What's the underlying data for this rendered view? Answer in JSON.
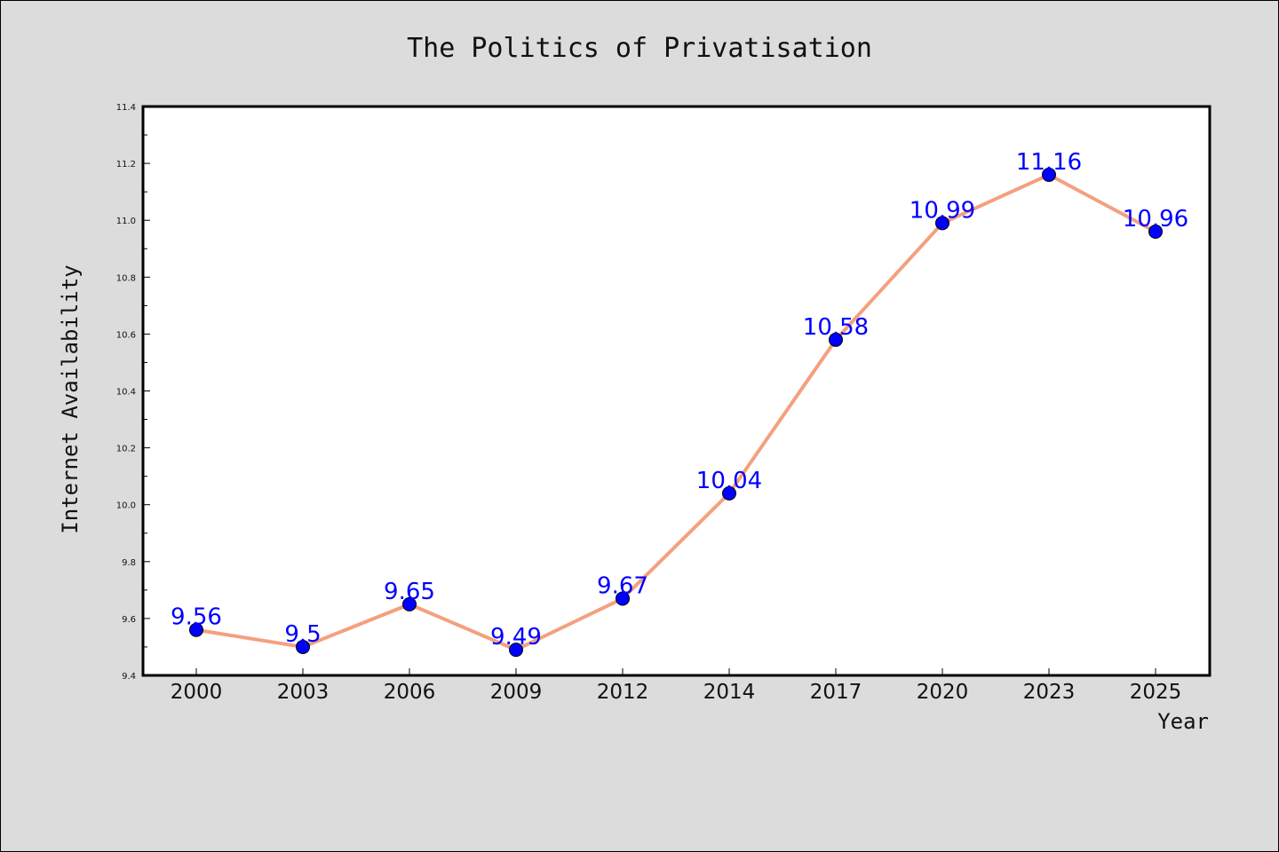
{
  "chart_data": {
    "type": "line",
    "title": "The Politics of Privatisation",
    "xlabel": "Year",
    "ylabel": "Internet Availability",
    "categories": [
      "2000",
      "2003",
      "2006",
      "2009",
      "2012",
      "2014",
      "2017",
      "2020",
      "2023",
      "2025"
    ],
    "series": [
      {
        "values": [
          9.56,
          9.5,
          9.65,
          9.49,
          9.67,
          10.04,
          10.58,
          10.99,
          11.16,
          10.96
        ],
        "labels": [
          "9.56",
          "9.5",
          "9.65",
          "9.49",
          "9.67",
          "10.04",
          "10.58",
          "10.99",
          "11.16",
          "10.96"
        ],
        "line_color": "#f4a07f",
        "marker_color": "#0000ff",
        "label_color": "#0000ff"
      }
    ],
    "ylim": [
      9.4,
      11.4
    ],
    "yticks": [
      "9.4",
      "9.6",
      "9.8",
      "10.0",
      "10.2",
      "10.4",
      "10.6",
      "10.8",
      "11.0",
      "11.2",
      "11.4"
    ],
    "grid": false,
    "legend": "none"
  }
}
